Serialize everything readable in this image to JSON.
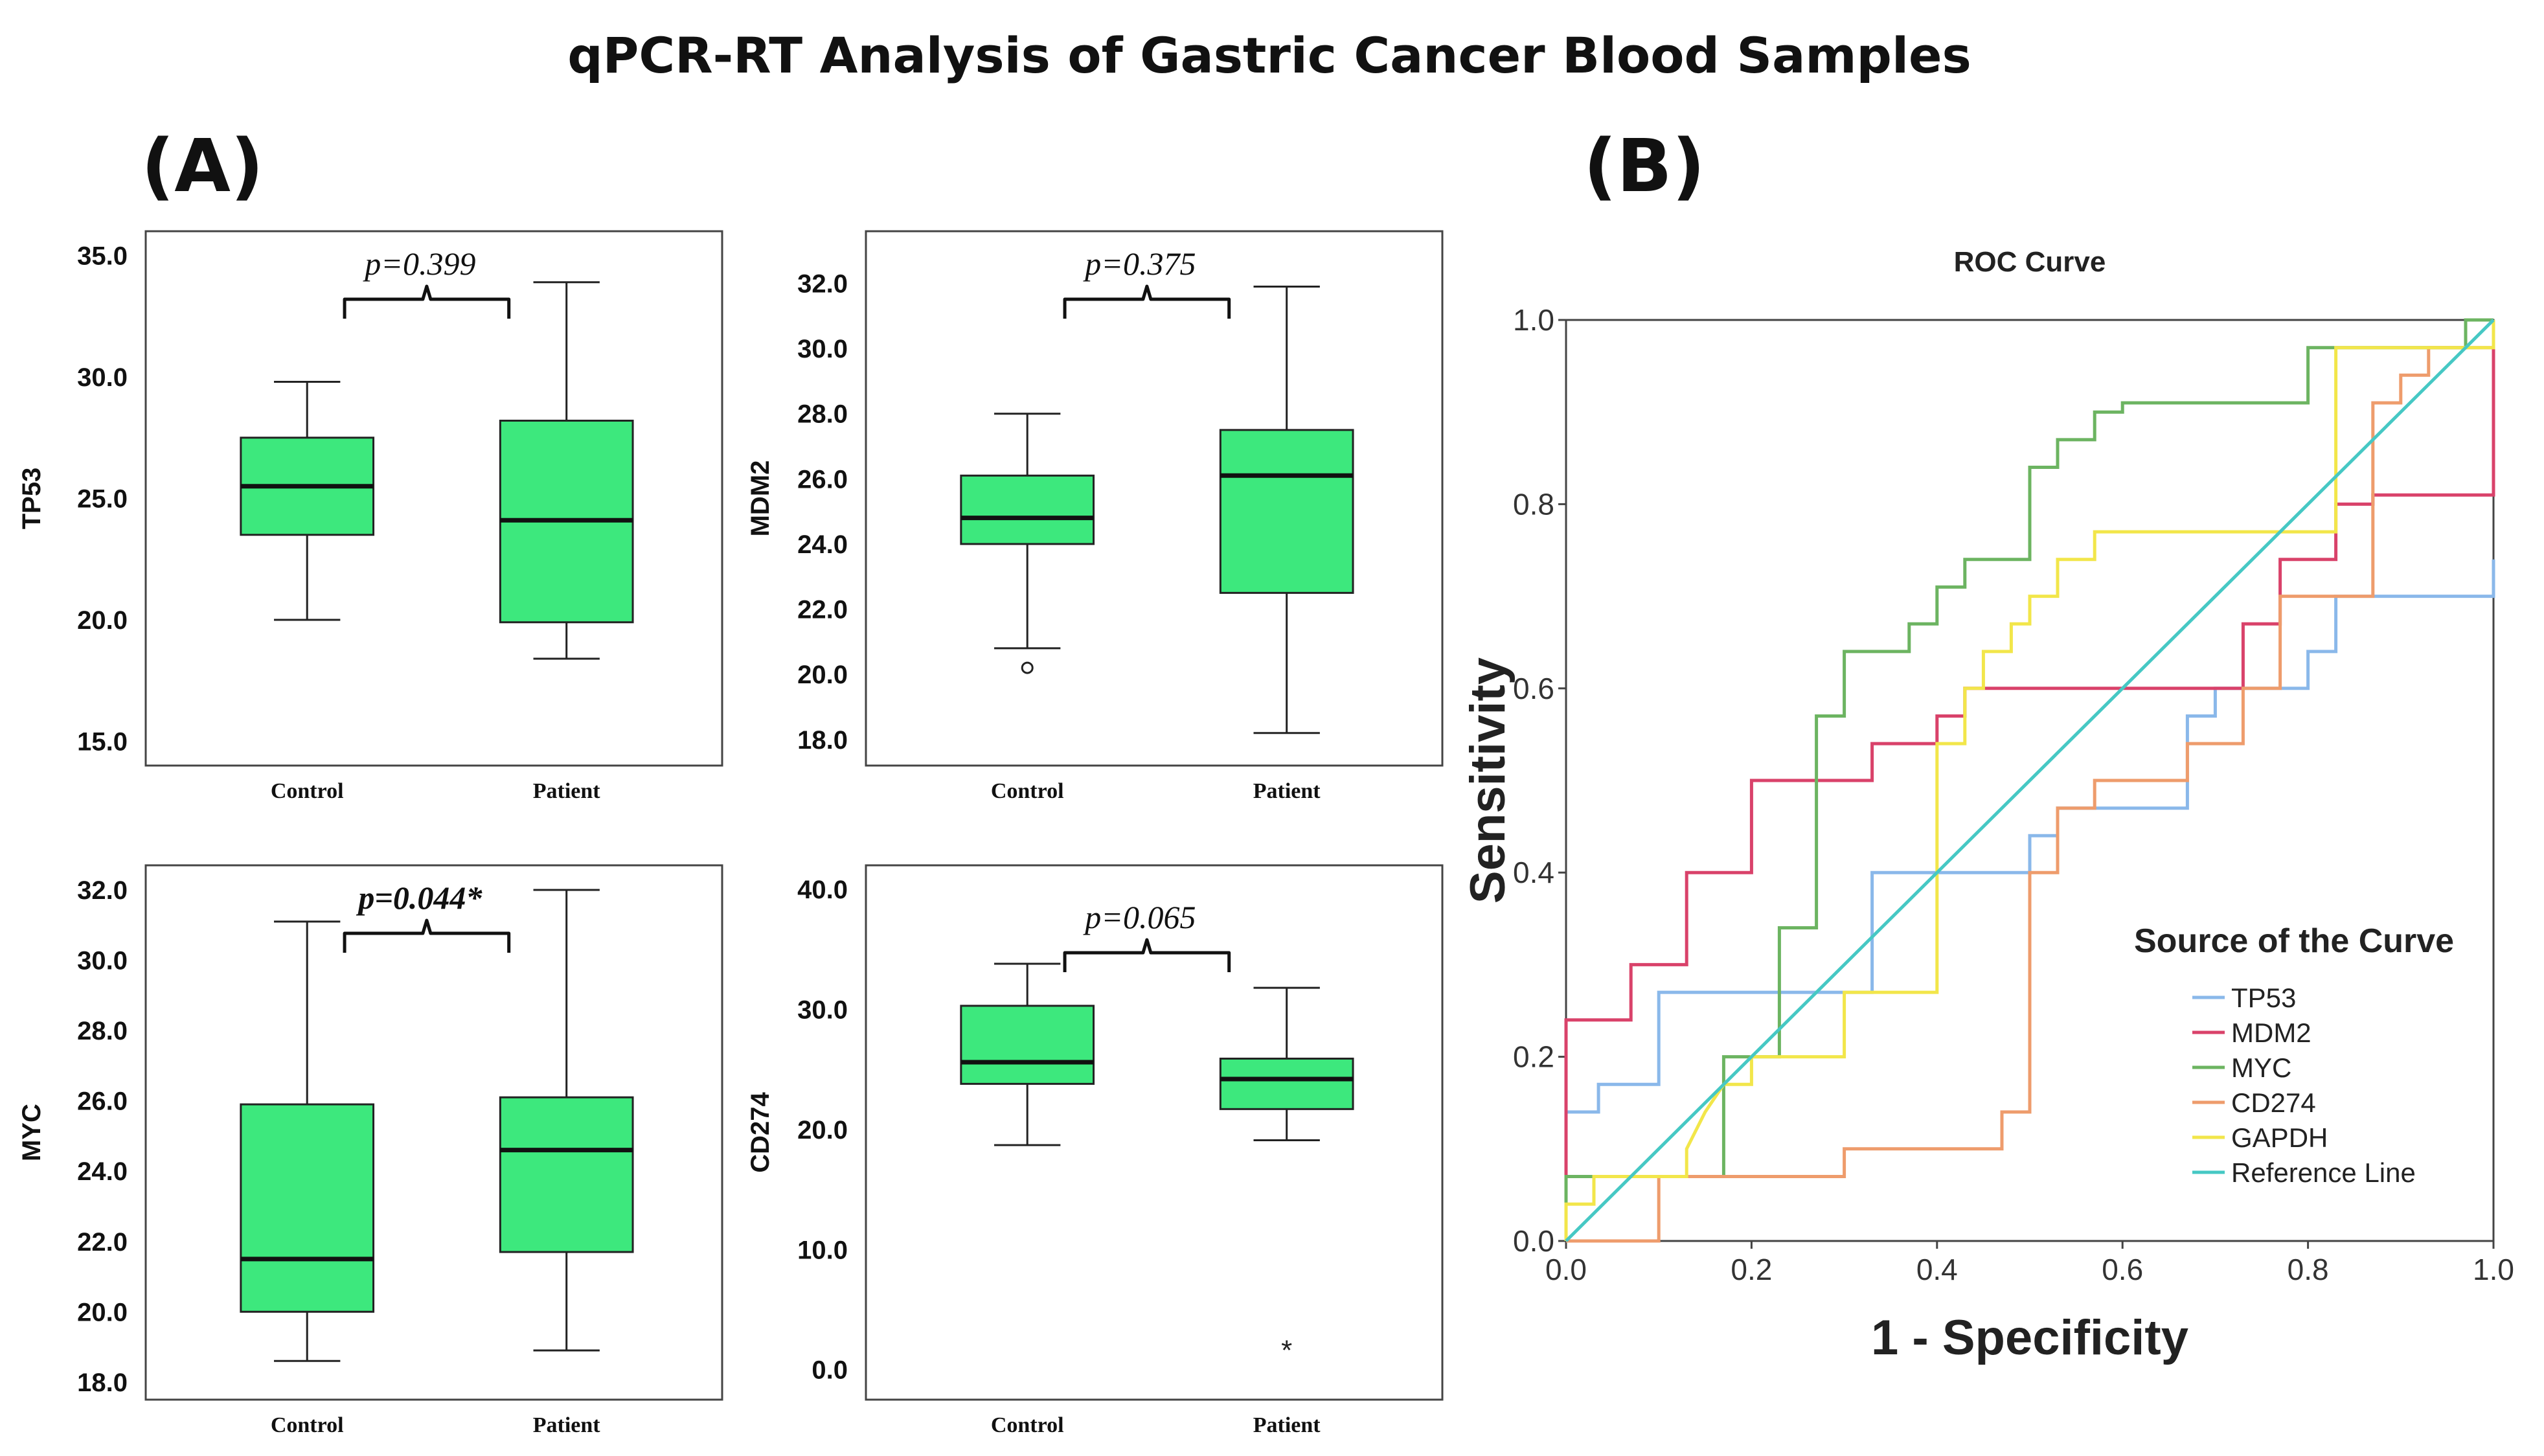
{
  "main_title": "qPCR-RT Analysis of Gastric Cancer Blood Samples",
  "panel_a_label": "(A)",
  "panel_b_label": "(B)",
  "colors": {
    "box_fill": "#3de87d",
    "frame": "#444444",
    "tp53": "#8ab8ea",
    "mdm2": "#d9426a",
    "myc": "#6cb461",
    "cd274": "#ee9c6c",
    "gapdh": "#f2e64a",
    "reference": "#46c8c4"
  },
  "chart_data": [
    {
      "type": "box",
      "id": "tp53",
      "ylabel": "TP53",
      "categories": [
        "Control",
        "Patient"
      ],
      "ylim": [
        14.0,
        36.0
      ],
      "yticks": [
        15.0,
        20.0,
        25.0,
        30.0,
        35.0
      ],
      "tick_labels": [
        "15.0",
        "20.0",
        "25.0",
        "30.0",
        "35.0"
      ],
      "boxes": [
        {
          "min": 20.0,
          "q1": 23.5,
          "median": 25.5,
          "q3": 27.5,
          "max": 29.8,
          "outliers": []
        },
        {
          "min": 18.4,
          "q1": 19.9,
          "median": 24.1,
          "q3": 28.2,
          "max": 33.9,
          "outliers": []
        }
      ],
      "pvalue": "p=0.399",
      "significant": false
    },
    {
      "type": "box",
      "id": "mdm2",
      "ylabel": "MDM2",
      "categories": [
        "Control",
        "Patient"
      ],
      "ylim": [
        17.2,
        33.6
      ],
      "yticks": [
        18.0,
        20.0,
        22.0,
        24.0,
        26.0,
        28.0,
        30.0,
        32.0
      ],
      "tick_labels": [
        "18.0",
        "20.0",
        "22.0",
        "24.0",
        "26.0",
        "28.0",
        "30.0",
        "32.0"
      ],
      "boxes": [
        {
          "min": 20.8,
          "q1": 24.0,
          "median": 24.8,
          "q3": 26.1,
          "max": 28.0,
          "outliers": [
            {
              "value": 20.2,
              "marker": "circle"
            }
          ]
        },
        {
          "min": 18.2,
          "q1": 22.5,
          "median": 26.1,
          "q3": 27.5,
          "max": 31.9,
          "outliers": []
        }
      ],
      "pvalue": "p=0.375",
      "significant": false
    },
    {
      "type": "box",
      "id": "myc",
      "ylabel": "MYC",
      "categories": [
        "Control",
        "Patient"
      ],
      "ylim": [
        17.5,
        32.7
      ],
      "yticks": [
        18.0,
        20.0,
        22.0,
        24.0,
        26.0,
        28.0,
        30.0,
        32.0
      ],
      "tick_labels": [
        "18.0",
        "20.0",
        "22.0",
        "24.0",
        "26.0",
        "28.0",
        "30.0",
        "32.0"
      ],
      "boxes": [
        {
          "min": 18.6,
          "q1": 20.0,
          "median": 21.5,
          "q3": 25.9,
          "max": 31.1,
          "outliers": []
        },
        {
          "min": 18.9,
          "q1": 21.7,
          "median": 24.6,
          "q3": 26.1,
          "max": 32.0,
          "outliers": []
        }
      ],
      "pvalue": "p=0.044*",
      "significant": true
    },
    {
      "type": "box",
      "id": "cd274",
      "ylabel": "CD274",
      "categories": [
        "Control",
        "Patient"
      ],
      "ylim": [
        -2.5,
        42.0
      ],
      "yticks": [
        0.0,
        10.0,
        20.0,
        30.0,
        40.0
      ],
      "tick_labels": [
        "0.0",
        "10.0",
        "20.0",
        "30.0",
        "40.0"
      ],
      "boxes": [
        {
          "min": 18.7,
          "q1": 23.8,
          "median": 25.6,
          "q3": 30.3,
          "max": 33.8,
          "outliers": []
        },
        {
          "min": 19.1,
          "q1": 21.7,
          "median": 24.2,
          "q3": 25.9,
          "max": 31.8,
          "outliers": [
            {
              "value": 1.8,
              "marker": "star"
            }
          ]
        }
      ],
      "pvalue": "p=0.065",
      "significant": false
    },
    {
      "type": "line",
      "id": "roc",
      "title": "ROC Curve",
      "xlabel": "1 - Specificity",
      "ylabel": "Sensitivity",
      "xlim": [
        0,
        1
      ],
      "ylim": [
        0,
        1
      ],
      "xticks": [
        "0.0",
        "0.2",
        "0.4",
        "0.6",
        "0.8",
        "1.0"
      ],
      "yticks": [
        "0.0",
        "0.2",
        "0.4",
        "0.6",
        "0.8",
        "1.0"
      ],
      "legend_title": "Source of the Curve",
      "legend_position": "bottom-right",
      "series": [
        {
          "name": "TP53",
          "color_key": "tp53",
          "points": [
            [
              0,
              0
            ],
            [
              0,
              0.14
            ],
            [
              0.035,
              0.14
            ],
            [
              0.035,
              0.17
            ],
            [
              0.1,
              0.17
            ],
            [
              0.1,
              0.27
            ],
            [
              0.33,
              0.27
            ],
            [
              0.33,
              0.4
            ],
            [
              0.5,
              0.4
            ],
            [
              0.5,
              0.44
            ],
            [
              0.53,
              0.44
            ],
            [
              0.53,
              0.47
            ],
            [
              0.67,
              0.47
            ],
            [
              0.67,
              0.57
            ],
            [
              0.7,
              0.57
            ],
            [
              0.7,
              0.6
            ],
            [
              0.8,
              0.6
            ],
            [
              0.8,
              0.64
            ],
            [
              0.83,
              0.64
            ],
            [
              0.83,
              0.7
            ],
            [
              1,
              0.7
            ],
            [
              1,
              0.74
            ]
          ]
        },
        {
          "name": "MDM2",
          "color_key": "mdm2",
          "points": [
            [
              0,
              0
            ],
            [
              0,
              0.24
            ],
            [
              0.07,
              0.24
            ],
            [
              0.07,
              0.3
            ],
            [
              0.13,
              0.3
            ],
            [
              0.13,
              0.4
            ],
            [
              0.2,
              0.4
            ],
            [
              0.2,
              0.5
            ],
            [
              0.33,
              0.5
            ],
            [
              0.33,
              0.54
            ],
            [
              0.4,
              0.54
            ],
            [
              0.4,
              0.57
            ],
            [
              0.43,
              0.57
            ],
            [
              0.43,
              0.6
            ],
            [
              0.73,
              0.6
            ],
            [
              0.73,
              0.67
            ],
            [
              0.77,
              0.67
            ],
            [
              0.77,
              0.74
            ],
            [
              0.83,
              0.74
            ],
            [
              0.83,
              0.8
            ],
            [
              0.87,
              0.8
            ],
            [
              0.87,
              0.81
            ],
            [
              1,
              0.81
            ],
            [
              1,
              1
            ]
          ]
        },
        {
          "name": "MYC",
          "color_key": "myc",
          "points": [
            [
              0,
              0
            ],
            [
              0,
              0.07
            ],
            [
              0.17,
              0.07
            ],
            [
              0.17,
              0.2
            ],
            [
              0.23,
              0.2
            ],
            [
              0.23,
              0.34
            ],
            [
              0.27,
              0.34
            ],
            [
              0.27,
              0.57
            ],
            [
              0.3,
              0.57
            ],
            [
              0.3,
              0.64
            ],
            [
              0.37,
              0.64
            ],
            [
              0.37,
              0.67
            ],
            [
              0.4,
              0.67
            ],
            [
              0.4,
              0.71
            ],
            [
              0.43,
              0.71
            ],
            [
              0.43,
              0.74
            ],
            [
              0.5,
              0.74
            ],
            [
              0.5,
              0.84
            ],
            [
              0.53,
              0.84
            ],
            [
              0.53,
              0.87
            ],
            [
              0.57,
              0.87
            ],
            [
              0.57,
              0.9
            ],
            [
              0.6,
              0.9
            ],
            [
              0.6,
              0.91
            ],
            [
              0.8,
              0.91
            ],
            [
              0.8,
              0.97
            ],
            [
              0.97,
              0.97
            ],
            [
              0.97,
              1
            ],
            [
              1,
              1
            ]
          ]
        },
        {
          "name": "CD274",
          "color_key": "cd274",
          "points": [
            [
              0,
              0
            ],
            [
              0.1,
              0
            ],
            [
              0.1,
              0.07
            ],
            [
              0.3,
              0.07
            ],
            [
              0.3,
              0.1
            ],
            [
              0.47,
              0.1
            ],
            [
              0.47,
              0.14
            ],
            [
              0.5,
              0.14
            ],
            [
              0.5,
              0.4
            ],
            [
              0.53,
              0.4
            ],
            [
              0.53,
              0.47
            ],
            [
              0.57,
              0.47
            ],
            [
              0.57,
              0.5
            ],
            [
              0.67,
              0.5
            ],
            [
              0.67,
              0.54
            ],
            [
              0.73,
              0.54
            ],
            [
              0.73,
              0.6
            ],
            [
              0.77,
              0.6
            ],
            [
              0.77,
              0.7
            ],
            [
              0.87,
              0.7
            ],
            [
              0.87,
              0.91
            ],
            [
              0.9,
              0.91
            ],
            [
              0.9,
              0.94
            ],
            [
              0.93,
              0.94
            ],
            [
              0.93,
              0.97
            ],
            [
              1,
              0.97
            ],
            [
              1,
              1
            ]
          ]
        },
        {
          "name": "GAPDH",
          "color_key": "gapdh",
          "points": [
            [
              0,
              0
            ],
            [
              0,
              0.04
            ],
            [
              0.03,
              0.04
            ],
            [
              0.03,
              0.07
            ],
            [
              0.13,
              0.07
            ],
            [
              0.13,
              0.1
            ],
            [
              0.15,
              0.14
            ],
            [
              0.17,
              0.17
            ],
            [
              0.2,
              0.17
            ],
            [
              0.2,
              0.2
            ],
            [
              0.3,
              0.2
            ],
            [
              0.3,
              0.27
            ],
            [
              0.4,
              0.27
            ],
            [
              0.4,
              0.54
            ],
            [
              0.43,
              0.54
            ],
            [
              0.43,
              0.6
            ],
            [
              0.45,
              0.6
            ],
            [
              0.45,
              0.64
            ],
            [
              0.48,
              0.64
            ],
            [
              0.48,
              0.67
            ],
            [
              0.5,
              0.67
            ],
            [
              0.5,
              0.7
            ],
            [
              0.53,
              0.7
            ],
            [
              0.53,
              0.74
            ],
            [
              0.57,
              0.74
            ],
            [
              0.57,
              0.77
            ],
            [
              0.83,
              0.77
            ],
            [
              0.83,
              0.97
            ],
            [
              1,
              0.97
            ],
            [
              1,
              1
            ]
          ]
        },
        {
          "name": "Reference Line",
          "color_key": "reference",
          "points": [
            [
              0,
              0
            ],
            [
              1,
              1
            ]
          ]
        }
      ]
    }
  ]
}
